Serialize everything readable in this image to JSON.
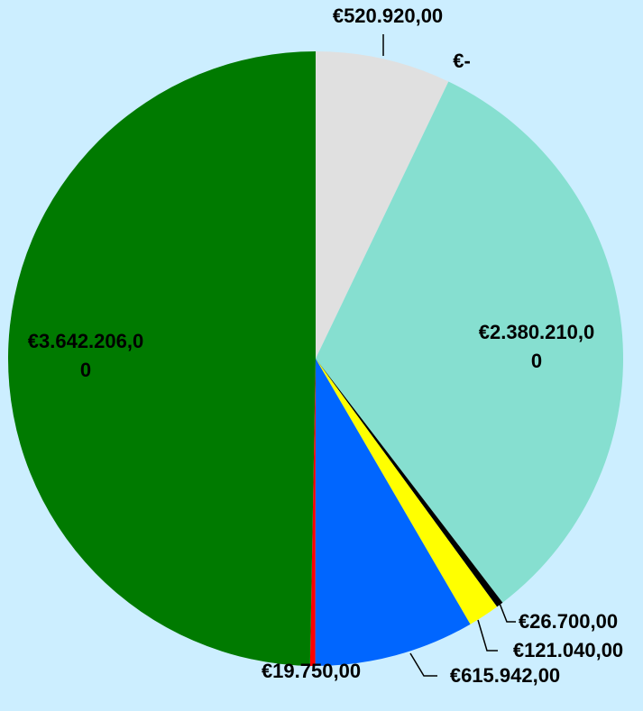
{
  "chart_data": {
    "type": "pie",
    "values": [
      520920,
      0,
      2380210,
      26700,
      121040,
      615942,
      19750,
      3642206
    ],
    "value_labels": [
      "€520.920,00",
      "€-",
      "€2.380.210,00",
      "€26.700,00",
      "€121.040,00",
      "€615.942,00",
      "€19.750,00",
      "€3.642.206,00"
    ],
    "colors": [
      "#e0e0e0",
      "#ff9900",
      "#86dfd0",
      "#000000",
      "#ffff00",
      "#0066ff",
      "#ff0000",
      "#007a00"
    ]
  }
}
